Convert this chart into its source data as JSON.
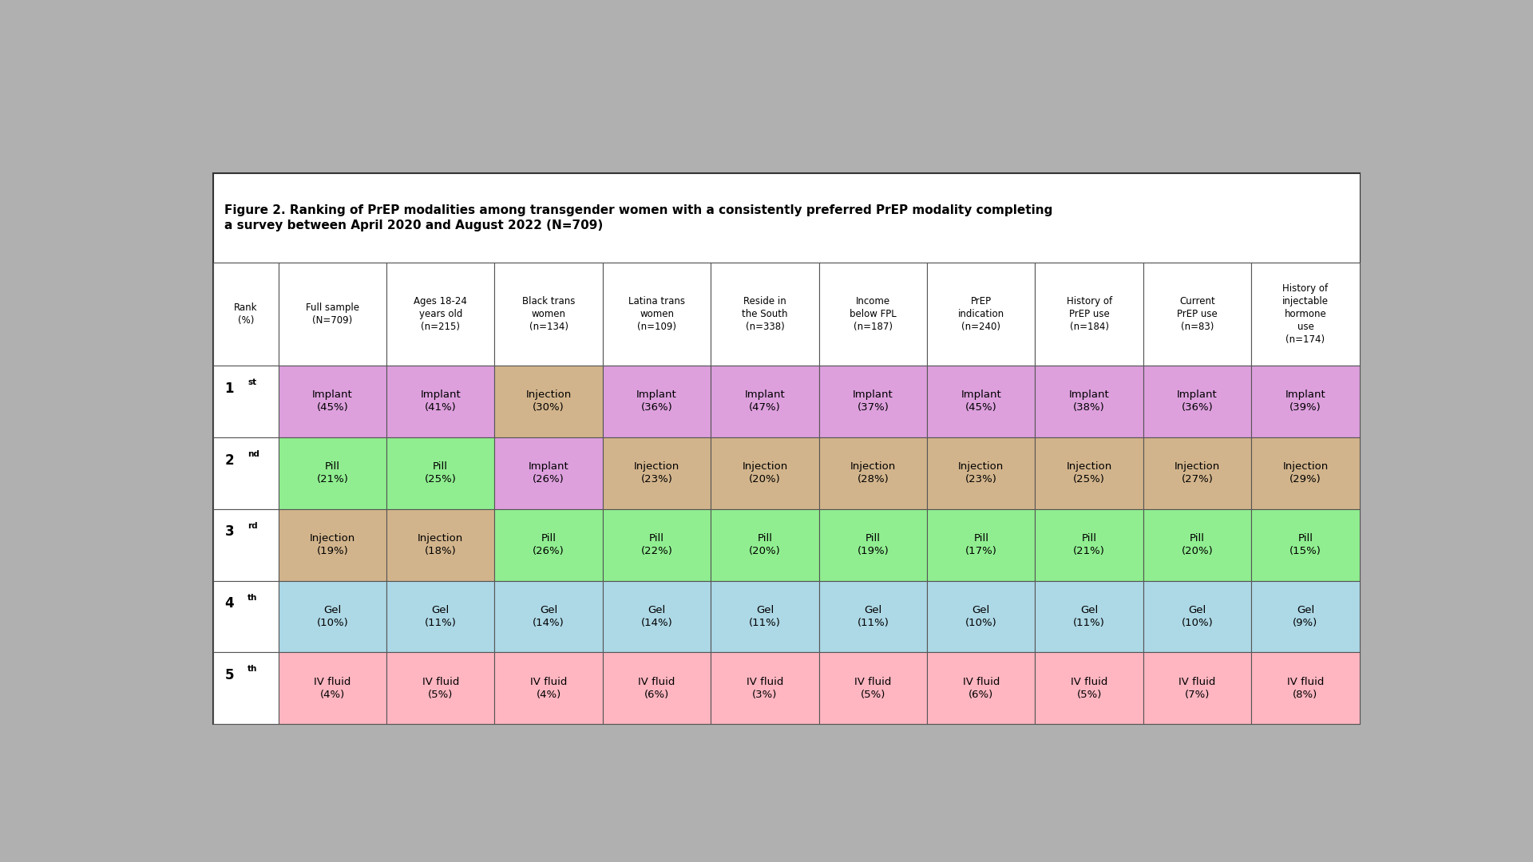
{
  "title_line1": "Figure 2. Ranking of PrEP modalities among transgender women with a consistently preferred PrEP modality completing",
  "title_line2": "a survey between April 2020 and August 2022 (N=709)",
  "col_headers": [
    "Rank\n(%)",
    "Full sample\n(N=709)",
    "Ages 18-24\nyears old\n(n=215)",
    "Black trans\nwomen\n(n=134)",
    "Latina trans\nwomen\n(n=109)",
    "Reside in\nthe South\n(n=338)",
    "Income\nbelow FPL\n(n=187)",
    "PrEP\nindication\n(n=240)",
    "History of\nPrEP use\n(n=184)",
    "Current\nPrEP use\n(n=83)",
    "History of\ninjectable\nhormone\nuse\n(n=174)"
  ],
  "row_labels_plain": [
    "1st",
    "2nd",
    "3rd",
    "4th",
    "5th"
  ],
  "cell_data": [
    [
      "Implant\n(45%)",
      "Implant\n(41%)",
      "Injection\n(30%)",
      "Implant\n(36%)",
      "Implant\n(47%)",
      "Implant\n(37%)",
      "Implant\n(45%)",
      "Implant\n(38%)",
      "Implant\n(36%)",
      "Implant\n(39%)"
    ],
    [
      "Pill\n(21%)",
      "Pill\n(25%)",
      "Implant\n(26%)",
      "Injection\n(23%)",
      "Injection\n(20%)",
      "Injection\n(28%)",
      "Injection\n(23%)",
      "Injection\n(25%)",
      "Injection\n(27%)",
      "Injection\n(29%)"
    ],
    [
      "Injection\n(19%)",
      "Injection\n(18%)",
      "Pill\n(26%)",
      "Pill\n(22%)",
      "Pill\n(20%)",
      "Pill\n(19%)",
      "Pill\n(17%)",
      "Pill\n(21%)",
      "Pill\n(20%)",
      "Pill\n(15%)"
    ],
    [
      "Gel\n(10%)",
      "Gel\n(11%)",
      "Gel\n(14%)",
      "Gel\n(14%)",
      "Gel\n(11%)",
      "Gel\n(11%)",
      "Gel\n(10%)",
      "Gel\n(11%)",
      "Gel\n(10%)",
      "Gel\n(9%)"
    ],
    [
      "IV fluid\n(4%)",
      "IV fluid\n(5%)",
      "IV fluid\n(4%)",
      "IV fluid\n(6%)",
      "IV fluid\n(3%)",
      "IV fluid\n(5%)",
      "IV fluid\n(6%)",
      "IV fluid\n(5%)",
      "IV fluid\n(7%)",
      "IV fluid\n(8%)"
    ]
  ],
  "cell_colors": [
    [
      "#dda0dd",
      "#dda0dd",
      "#d2b48c",
      "#dda0dd",
      "#dda0dd",
      "#dda0dd",
      "#dda0dd",
      "#dda0dd",
      "#dda0dd",
      "#dda0dd"
    ],
    [
      "#90ee90",
      "#90ee90",
      "#dda0dd",
      "#d2b48c",
      "#d2b48c",
      "#d2b48c",
      "#d2b48c",
      "#d2b48c",
      "#d2b48c",
      "#d2b48c"
    ],
    [
      "#d2b48c",
      "#d2b48c",
      "#90ee90",
      "#90ee90",
      "#90ee90",
      "#90ee90",
      "#90ee90",
      "#90ee90",
      "#90ee90",
      "#90ee90"
    ],
    [
      "#add8e6",
      "#add8e6",
      "#add8e6",
      "#add8e6",
      "#add8e6",
      "#add8e6",
      "#add8e6",
      "#add8e6",
      "#add8e6",
      "#add8e6"
    ],
    [
      "#ffb6c1",
      "#ffb6c1",
      "#ffb6c1",
      "#ffb6c1",
      "#ffb6c1",
      "#ffb6c1",
      "#ffb6c1",
      "#ffb6c1",
      "#ffb6c1",
      "#ffb6c1"
    ]
  ],
  "background_color": "#b0b0b0",
  "fig_width": 19.2,
  "fig_height": 10.8
}
